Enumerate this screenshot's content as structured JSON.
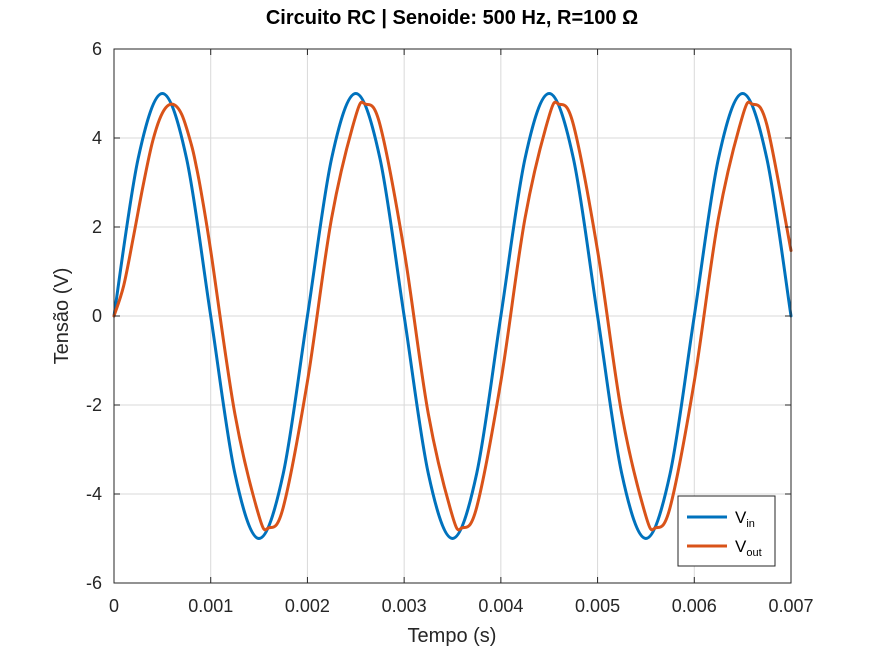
{
  "chart_data": {
    "type": "line",
    "title": "Circuito RC | Senoide: 500 Hz, R=100 Ω",
    "xlabel": "Tempo (s)",
    "ylabel": "Tensão (V)",
    "xlim": [
      0,
      0.007
    ],
    "ylim": [
      -6,
      6
    ],
    "xticks": [
      "0",
      "0.001",
      "0.002",
      "0.003",
      "0.004",
      "0.005",
      "0.006",
      "0.007"
    ],
    "yticks": [
      "6",
      "4",
      "2",
      "0",
      "-2",
      "-4",
      "-6"
    ],
    "grid": true,
    "legend_position": "bottom-right",
    "series": [
      {
        "name": "V_in",
        "legend_main": "V",
        "legend_sub": "in",
        "color": "#0072BD",
        "x": [
          0,
          0.00025,
          0.0005,
          0.00075,
          0.001,
          0.00125,
          0.0015,
          0.00175,
          0.002,
          0.00225,
          0.0025,
          0.00275,
          0.003,
          0.00325,
          0.0035,
          0.00375,
          0.004,
          0.00425,
          0.0045,
          0.00475,
          0.005,
          0.00525,
          0.0055,
          0.00575,
          0.006,
          0.00625,
          0.0065,
          0.00675,
          0.007
        ],
        "y": [
          0,
          3.54,
          5.0,
          3.54,
          0,
          -3.54,
          -5.0,
          -3.54,
          0,
          3.54,
          5.0,
          3.54,
          0,
          -3.54,
          -5.0,
          -3.54,
          0,
          3.54,
          5.0,
          3.54,
          0,
          -3.54,
          -5.0,
          -3.54,
          0,
          3.54,
          5.0,
          3.54,
          0
        ]
      },
      {
        "name": "V_out",
        "legend_main": "V",
        "legend_sub": "out",
        "color": "#D95319",
        "x": [
          0,
          0.0001,
          0.0002,
          0.0003,
          0.0004,
          0.0005,
          0.0006,
          0.0007,
          0.0008,
          0.00085,
          0.0009,
          0.001,
          0.00125,
          0.0015,
          0.0016,
          0.00175,
          0.002,
          0.00225,
          0.0025,
          0.0026,
          0.00275,
          0.003,
          0.00325,
          0.0035,
          0.0036,
          0.00375,
          0.004,
          0.00425,
          0.0045,
          0.0046,
          0.00475,
          0.005,
          0.00525,
          0.0055,
          0.0056,
          0.00575,
          0.006,
          0.00625,
          0.0065,
          0.0066,
          0.00675,
          0.007
        ],
        "y": [
          0,
          0.68,
          1.77,
          2.92,
          3.93,
          4.56,
          4.76,
          4.53,
          3.85,
          3.37,
          2.8,
          1.47,
          -2.2,
          -4.5,
          -4.76,
          -4.3,
          -1.47,
          2.2,
          4.5,
          4.76,
          4.3,
          1.47,
          -2.2,
          -4.5,
          -4.76,
          -4.3,
          -1.47,
          2.2,
          4.5,
          4.76,
          4.3,
          1.47,
          -2.2,
          -4.5,
          -4.76,
          -4.3,
          -1.47,
          2.2,
          4.5,
          4.76,
          4.3,
          1.47
        ]
      }
    ]
  }
}
